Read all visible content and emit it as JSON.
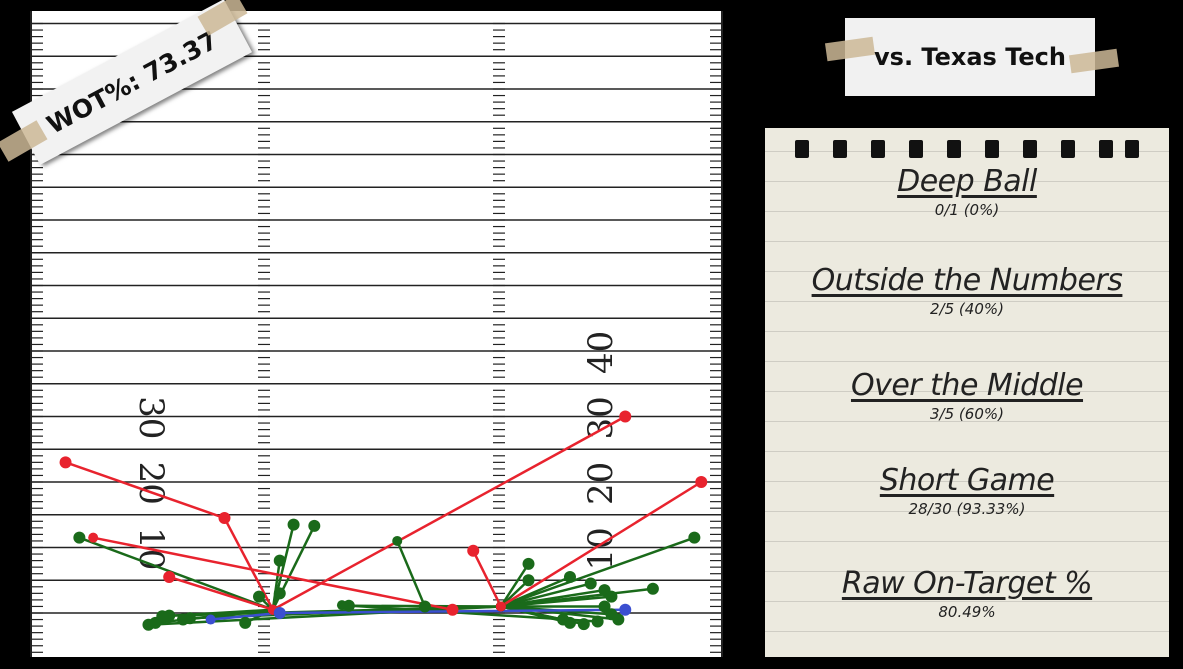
{
  "wot_label": "WOT%: 73.37",
  "opponent_label": "vs. Texas Tech",
  "stats": [
    {
      "title": "Deep Ball",
      "value": "0/1 (0%)"
    },
    {
      "title": "Outside the Numbers",
      "value": "2/5 (40%)"
    },
    {
      "title": "Over the Middle",
      "value": "3/5 (60%)"
    },
    {
      "title": "Short Game",
      "value": "28/30 (93.33%)"
    },
    {
      "title": "Raw On-Target %",
      "value": "80.49%"
    }
  ],
  "colors": {
    "complete": "#1a6a1a",
    "incomplete": "#e8232e",
    "throwaway": "#3b4fd0",
    "field_line": "#222222"
  },
  "field": {
    "yard_labels_left": [
      "30",
      "20",
      "10"
    ],
    "yard_labels_right": [
      "40",
      "30",
      "20",
      "10"
    ]
  },
  "chart_data": {
    "type": "scatter",
    "title": "",
    "xlabel": "",
    "ylabel": "",
    "x_units": "field width fraction (0=left sideline, 1=right sideline)",
    "y_units": "yards downfield past line of scrimmage",
    "xlim": [
      0,
      1
    ],
    "ylim": [
      -1.5,
      39.5
    ],
    "series": [
      {
        "name": "complete",
        "color": "#1a6a1a",
        "passes": [
          {
            "from": [
              0.35,
              0.5
            ],
            "to": [
              0.07,
              11.5
            ]
          },
          {
            "from": [
              0.35,
              0.5
            ],
            "to": [
              0.38,
              13.5
            ]
          },
          {
            "from": [
              0.35,
              0.5
            ],
            "to": [
              0.41,
              13.3
            ]
          },
          {
            "from": [
              0.35,
              0.5
            ],
            "to": [
              0.36,
              8.0
            ]
          },
          {
            "from": [
              0.35,
              0.5
            ],
            "to": [
              0.33,
              2.5
            ]
          },
          {
            "from": [
              0.35,
              0.5
            ],
            "to": [
              0.36,
              3.0
            ]
          },
          {
            "from": [
              0.35,
              0.5
            ],
            "to": [
              0.18,
              -1.5
            ]
          },
          {
            "from": [
              0.35,
              0.5
            ],
            "to": [
              0.22,
              -1.0
            ]
          },
          {
            "from": [
              0.35,
              0.5
            ],
            "to": [
              0.31,
              -1.5
            ]
          },
          {
            "from": [
              0.35,
              0.5
            ],
            "to": [
              0.19,
              -0.5
            ]
          },
          {
            "from": [
              0.53,
              11.0
            ],
            "to": [
              0.57,
              1.0
            ]
          },
          {
            "from": [
              0.45,
              1.2
            ],
            "to": [
              0.82,
              -1.3
            ]
          },
          {
            "from": [
              0.68,
              1.0
            ],
            "to": [
              0.72,
              7.5
            ]
          },
          {
            "from": [
              0.68,
              1.0
            ],
            "to": [
              0.78,
              5.5
            ]
          },
          {
            "from": [
              0.68,
              1.0
            ],
            "to": [
              0.81,
              4.5
            ]
          },
          {
            "from": [
              0.68,
              1.0
            ],
            "to": [
              0.83,
              3.5
            ]
          },
          {
            "from": [
              0.68,
              1.0
            ],
            "to": [
              0.84,
              2.5
            ]
          },
          {
            "from": [
              0.68,
              1.0
            ],
            "to": [
              0.9,
              3.7
            ]
          },
          {
            "from": [
              0.68,
              1.0
            ],
            "to": [
              0.96,
              11.5
            ]
          },
          {
            "from": [
              0.68,
              1.0
            ],
            "to": [
              0.84,
              -0.2
            ]
          },
          {
            "from": [
              0.68,
              1.0
            ],
            "to": [
              0.85,
              -1.0
            ]
          },
          {
            "from": [
              0.68,
              1.0
            ],
            "to": [
              0.77,
              -1.0
            ]
          },
          {
            "from": [
              0.68,
              1.0
            ],
            "to": [
              0.78,
              -1.5
            ]
          },
          {
            "from": [
              0.68,
              1.0
            ],
            "to": [
              0.8,
              -1.7
            ]
          },
          {
            "from": [
              0.68,
              1.0
            ],
            "to": [
              0.72,
              5.0
            ]
          },
          {
            "from": [
              0.68,
              1.0
            ],
            "to": [
              0.46,
              1.1
            ]
          },
          {
            "from": [
              0.68,
              1.0
            ],
            "to": [
              0.23,
              -0.8
            ]
          },
          {
            "from": [
              0.68,
              1.0
            ],
            "to": [
              0.2,
              -0.4
            ]
          },
          {
            "from": [
              0.68,
              1.0
            ],
            "to": [
              0.83,
              1.0
            ]
          },
          {
            "from": [
              0.68,
              1.0
            ],
            "to": [
              0.17,
              -1.8
            ]
          }
        ]
      },
      {
        "name": "incomplete",
        "color": "#e8232e",
        "passes": [
          {
            "from": [
              0.35,
              0.5
            ],
            "to": [
              0.86,
              30.0
            ]
          },
          {
            "from": [
              0.35,
              0.5
            ],
            "to": [
              0.28,
              14.5
            ]
          },
          {
            "from": [
              0.35,
              0.5
            ],
            "to": [
              0.2,
              5.5
            ]
          },
          {
            "from": [
              0.28,
              14.5
            ],
            "to": [
              0.05,
              23.0
            ]
          },
          {
            "from": [
              0.09,
              11.5
            ],
            "to": [
              0.61,
              0.5
            ]
          },
          {
            "from": [
              0.68,
              1.0
            ],
            "to": [
              0.64,
              9.5
            ]
          },
          {
            "from": [
              0.68,
              1.0
            ],
            "to": [
              0.97,
              20.0
            ]
          }
        ]
      },
      {
        "name": "throwaway",
        "color": "#3b4fd0",
        "passes": [
          {
            "from": [
              0.26,
              -1.0
            ],
            "to": [
              0.36,
              0.0
            ]
          },
          {
            "from": [
              0.36,
              0.0
            ],
            "to": [
              0.86,
              0.5
            ]
          }
        ]
      }
    ]
  }
}
